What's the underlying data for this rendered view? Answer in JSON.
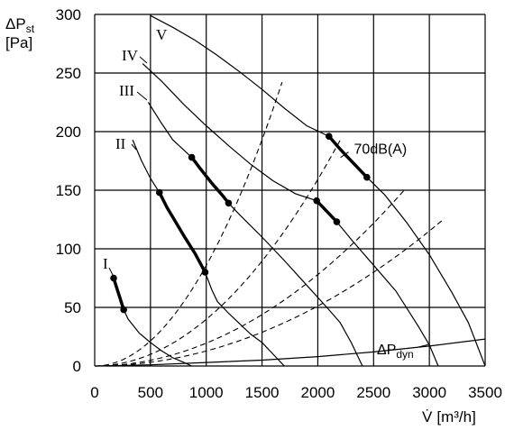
{
  "chart_data": {
    "type": "line",
    "title": "",
    "xlabel_main": "V̇",
    "xlabel_unit": "[m³/h]",
    "ylabel_main": "ΔP",
    "ylabel_sub": "st",
    "ylabel_unit": "[Pa]",
    "xlim": [
      0,
      3500
    ],
    "ylim": [
      0,
      300
    ],
    "xticks": [
      0,
      500,
      1000,
      1500,
      2000,
      2500,
      3000,
      3500
    ],
    "yticks": [
      0,
      50,
      100,
      150,
      200,
      250,
      300
    ],
    "grid": true,
    "series": [
      {
        "name": "I",
        "kind": "fan-curve",
        "points": [
          [
            150,
            77
          ],
          [
            180,
            70
          ],
          [
            220,
            60
          ],
          [
            260,
            48
          ],
          [
            300,
            40
          ],
          [
            400,
            28
          ],
          [
            500,
            20
          ],
          [
            600,
            13
          ],
          [
            700,
            7
          ],
          [
            800,
            3
          ],
          [
            870,
            0
          ]
        ],
        "bold_segment": [
          [
            170,
            75
          ],
          [
            200,
            66
          ],
          [
            230,
            57
          ],
          [
            260,
            48
          ]
        ]
      },
      {
        "name": "II",
        "kind": "fan-curve",
        "points": [
          [
            340,
            193
          ],
          [
            420,
            175
          ],
          [
            500,
            160
          ],
          [
            580,
            148
          ],
          [
            700,
            127
          ],
          [
            800,
            111
          ],
          [
            900,
            96
          ],
          [
            990,
            80
          ],
          [
            1050,
            65
          ],
          [
            1100,
            55
          ],
          [
            1200,
            45
          ],
          [
            1300,
            36
          ],
          [
            1400,
            27
          ],
          [
            1500,
            20
          ],
          [
            1600,
            10
          ],
          [
            1700,
            0
          ]
        ],
        "bold_segment": [
          [
            580,
            148
          ],
          [
            650,
            135
          ],
          [
            700,
            127
          ],
          [
            800,
            111
          ],
          [
            900,
            96
          ],
          [
            990,
            80
          ]
        ]
      },
      {
        "name": "III",
        "kind": "fan-curve",
        "points": [
          [
            480,
            225
          ],
          [
            600,
            207
          ],
          [
            700,
            193
          ],
          [
            870,
            178
          ],
          [
            1000,
            162
          ],
          [
            1100,
            150
          ],
          [
            1200,
            139
          ],
          [
            1300,
            129
          ],
          [
            1500,
            110
          ],
          [
            1700,
            90
          ],
          [
            1900,
            69
          ],
          [
            2100,
            48
          ],
          [
            2200,
            37
          ],
          [
            2300,
            20
          ],
          [
            2400,
            0
          ]
        ],
        "bold_segment": [
          [
            870,
            178
          ],
          [
            950,
            168
          ],
          [
            1050,
            156
          ],
          [
            1150,
            145
          ],
          [
            1200,
            139
          ]
        ]
      },
      {
        "name": "IV",
        "kind": "fan-curve",
        "points": [
          [
            430,
            258
          ],
          [
            600,
            243
          ],
          [
            800,
            223
          ],
          [
            1000,
            205
          ],
          [
            1200,
            188
          ],
          [
            1400,
            172
          ],
          [
            1600,
            158
          ],
          [
            1800,
            147
          ],
          [
            1990,
            141
          ],
          [
            2080,
            132
          ],
          [
            2170,
            123
          ],
          [
            2300,
            108
          ],
          [
            2500,
            86
          ],
          [
            2700,
            64
          ],
          [
            2900,
            34
          ],
          [
            3000,
            18
          ],
          [
            3080,
            0
          ]
        ],
        "bold_segment": [
          [
            1990,
            141
          ],
          [
            2070,
            133
          ],
          [
            2170,
            123
          ]
        ]
      },
      {
        "name": "V",
        "kind": "fan-curve",
        "points": [
          [
            500,
            299
          ],
          [
            700,
            289
          ],
          [
            900,
            278
          ],
          [
            1100,
            265
          ],
          [
            1300,
            251
          ],
          [
            1500,
            236
          ],
          [
            1700,
            220
          ],
          [
            1900,
            205
          ],
          [
            2100,
            196
          ],
          [
            2200,
            185
          ],
          [
            2300,
            175
          ],
          [
            2440,
            161
          ],
          [
            2600,
            146
          ],
          [
            2800,
            122
          ],
          [
            3000,
            95
          ],
          [
            3200,
            63
          ],
          [
            3350,
            37
          ],
          [
            3500,
            0
          ]
        ],
        "bold_segment": [
          [
            2100,
            196
          ],
          [
            2200,
            185
          ],
          [
            2300,
            175
          ],
          [
            2440,
            161
          ]
        ]
      },
      {
        "name": "ΔPdyn",
        "kind": "dynamic-pressure",
        "points": [
          [
            0,
            0
          ],
          [
            500,
            1
          ],
          [
            1000,
            3
          ],
          [
            1500,
            5
          ],
          [
            2000,
            8
          ],
          [
            2500,
            12
          ],
          [
            3000,
            17
          ],
          [
            3500,
            23
          ]
        ]
      }
    ],
    "system_curves": [
      {
        "k": 8.58e-05,
        "x_end": 1680
      },
      {
        "k": 3.98e-05,
        "x_end": 2200
      },
      {
        "k": 1.95e-05,
        "x_end": 2780
      },
      {
        "k": 1.28e-05,
        "x_end": 3110
      }
    ],
    "annotations": [
      {
        "text": "70dB(A)",
        "x": 2300,
        "y": 181
      },
      {
        "text_main": "ΔP",
        "text_sub": "dyn",
        "x": 2540,
        "y": 6
      }
    ]
  }
}
